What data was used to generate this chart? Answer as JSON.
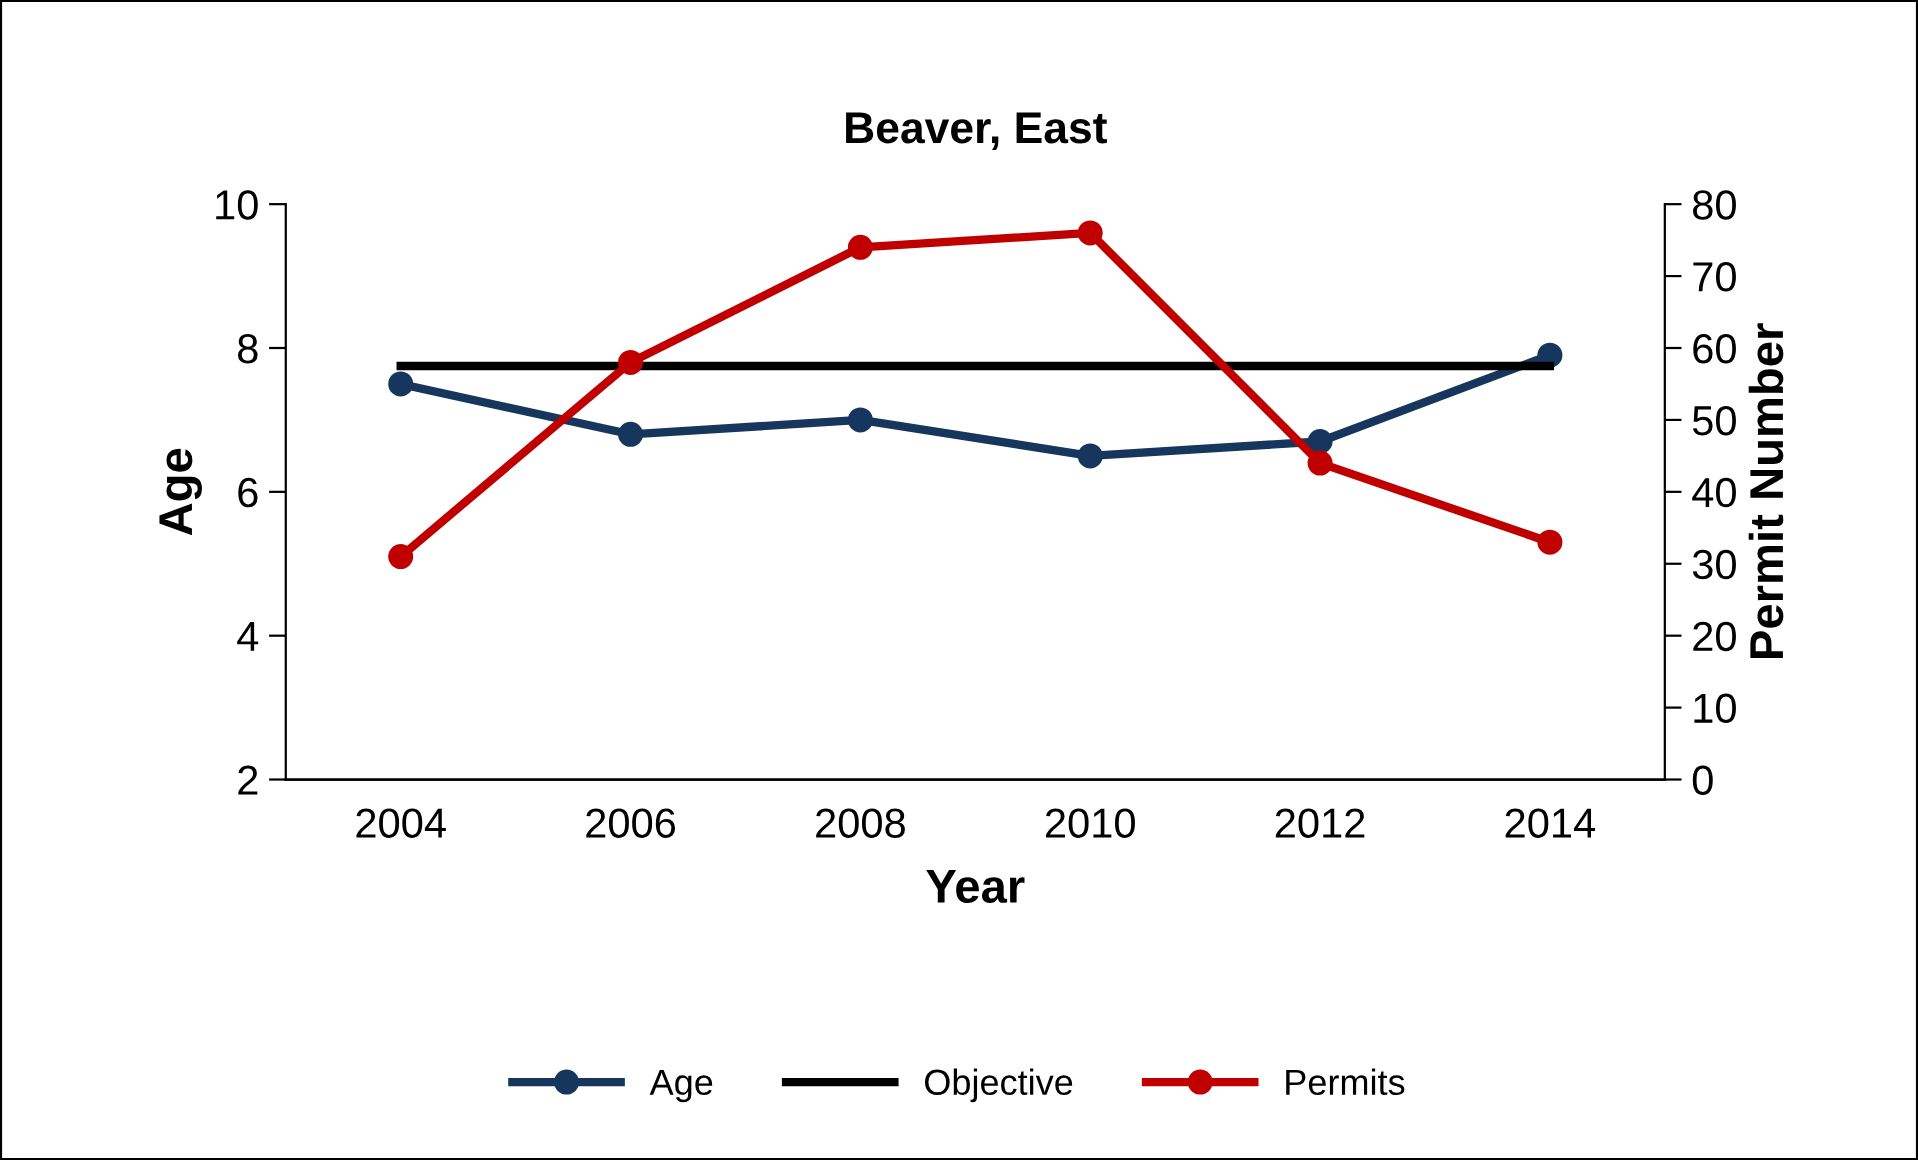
{
  "chart_data": {
    "type": "line",
    "title": "Beaver, East",
    "xlabel": "Year",
    "ylabel": "Age",
    "y2label": "Permit Number",
    "categories": [
      "2004",
      "2006",
      "2008",
      "2010",
      "2012",
      "2014"
    ],
    "series": [
      {
        "name": "Age",
        "color": "#17365d",
        "marker": "circle",
        "values": [
          7.5,
          6.8,
          7.0,
          6.5,
          6.7,
          7.9
        ]
      },
      {
        "name": "Objective",
        "color": "#000000",
        "marker": "none",
        "values": [
          7.75,
          7.75,
          7.75,
          7.75,
          7.75,
          7.75
        ]
      },
      {
        "name": "Permits",
        "color": "#c00000",
        "marker": "circle",
        "axis": "y2",
        "values": [
          31,
          58,
          74,
          76,
          44,
          33
        ]
      }
    ],
    "ylim": [
      2,
      10
    ],
    "yticks": [
      2,
      4,
      6,
      8,
      10
    ],
    "y2lim": [
      0,
      80
    ],
    "y2ticks": [
      0,
      10,
      20,
      30,
      40,
      50,
      60,
      70,
      80
    ],
    "grid": false,
    "legend": "bottom",
    "line_style": "solid"
  }
}
